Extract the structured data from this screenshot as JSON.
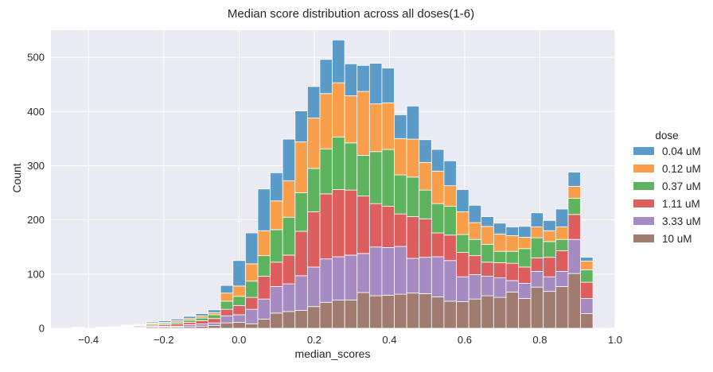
{
  "chart_data": {
    "type": "bar",
    "stacked": true,
    "title": "Median score distribution across all doses(1-6)",
    "xlabel": "median_scores",
    "ylabel": "Count",
    "xlim": [
      -0.5,
      1.0
    ],
    "ylim": [
      0,
      550
    ],
    "x_ticks": [
      -0.4,
      -0.2,
      0.0,
      0.2,
      0.4,
      0.6,
      0.8,
      1.0
    ],
    "x_tick_labels": [
      "−0.4",
      "−0.2",
      "0.0",
      "0.2",
      "0.4",
      "0.6",
      "0.8",
      "1.0"
    ],
    "y_ticks": [
      0,
      100,
      200,
      300,
      400,
      500
    ],
    "y_tick_labels": [
      "0",
      "100",
      "200",
      "300",
      "400",
      "500"
    ],
    "grid": true,
    "legend": {
      "title": "dose",
      "placement": "right"
    },
    "bin_width": 0.033,
    "bin_starts": [
      -0.445,
      -0.412,
      -0.379,
      -0.346,
      -0.313,
      -0.28,
      -0.247,
      -0.214,
      -0.181,
      -0.148,
      -0.115,
      -0.082,
      -0.049,
      -0.016,
      0.017,
      0.05,
      0.083,
      0.116,
      0.149,
      0.182,
      0.215,
      0.248,
      0.281,
      0.314,
      0.347,
      0.38,
      0.413,
      0.446,
      0.479,
      0.512,
      0.545,
      0.578,
      0.611,
      0.644,
      0.677,
      0.71,
      0.743,
      0.776,
      0.809,
      0.842,
      0.875,
      0.908
    ],
    "series": [
      {
        "name": "10 uM",
        "color": "#a07b70",
        "values": [
          0,
          0,
          0,
          0,
          1,
          1,
          2,
          2,
          2,
          3,
          4,
          5,
          10,
          11,
          8,
          17,
          28,
          31,
          33,
          40,
          48,
          52,
          52,
          66,
          60,
          61,
          63,
          65,
          64,
          58,
          50,
          49,
          54,
          60,
          57,
          67,
          55,
          76,
          68,
          77,
          101,
          27
        ]
      },
      {
        "name": "3.33 uM",
        "color": "#a58bc2",
        "values": [
          1,
          0,
          0,
          1,
          1,
          1,
          2,
          2,
          2,
          4,
          4,
          5,
          13,
          14,
          27,
          37,
          49,
          51,
          64,
          73,
          80,
          80,
          83,
          72,
          90,
          88,
          88,
          64,
          67,
          74,
          75,
          46,
          45,
          36,
          36,
          21,
          28,
          29,
          27,
          28,
          63,
          28
        ]
      },
      {
        "name": "1.11 uM",
        "color": "#dd5e5e",
        "values": [
          1,
          0,
          1,
          1,
          1,
          2,
          2,
          3,
          4,
          4,
          6,
          8,
          12,
          17,
          22,
          42,
          45,
          53,
          82,
          102,
          120,
          124,
          120,
          106,
          80,
          76,
          60,
          77,
          71,
          44,
          47,
          45,
          35,
          26,
          28,
          32,
          30,
          25,
          36,
          38,
          46,
          30
        ]
      },
      {
        "name": "0.37 uM",
        "color": "#5eb35e",
        "values": [
          0,
          0,
          0,
          0,
          1,
          1,
          2,
          2,
          3,
          4,
          5,
          7,
          15,
          17,
          30,
          38,
          60,
          70,
          71,
          80,
          83,
          97,
          87,
          75,
          96,
          105,
          72,
          73,
          53,
          54,
          53,
          33,
          30,
          33,
          21,
          22,
          34,
          37,
          29,
          21,
          30,
          23
        ]
      },
      {
        "name": "0.12 uM",
        "color": "#f99e4a",
        "values": [
          0,
          0,
          0,
          0,
          1,
          1,
          2,
          2,
          3,
          3,
          4,
          4,
          15,
          19,
          32,
          46,
          53,
          67,
          94,
          93,
          102,
          100,
          87,
          118,
          88,
          86,
          67,
          70,
          51,
          60,
          38,
          42,
          31,
          33,
          32,
          29,
          21,
          20,
          20,
          23,
          22,
          16
        ]
      },
      {
        "name": "0.04 uM",
        "color": "#5b9bc8",
        "values": [
          0,
          0,
          1,
          1,
          1,
          1,
          2,
          3,
          3,
          4,
          4,
          5,
          14,
          47,
          57,
          77,
          52,
          77,
          57,
          58,
          63,
          79,
          59,
          48,
          75,
          64,
          44,
          61,
          42,
          40,
          46,
          41,
          32,
          18,
          20,
          16,
          20,
          26,
          19,
          33,
          26,
          7
        ]
      }
    ]
  }
}
